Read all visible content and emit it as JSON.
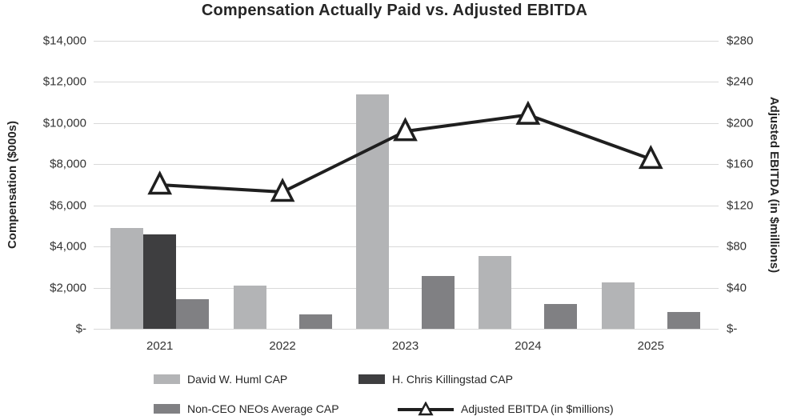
{
  "chart_data": {
    "type": "bar",
    "subtype": "grouped-bar-with-line-overlay",
    "title": "Compensation Actually Paid vs. Adjusted EBITDA",
    "categories": [
      "2021",
      "2022",
      "2023",
      "2024",
      "2025"
    ],
    "series": [
      {
        "name": "David W. Huml CAP",
        "type": "bar",
        "axis": "left",
        "color": "#b3b4b6",
        "values": [
          4900,
          2100,
          11400,
          3550,
          2250
        ]
      },
      {
        "name": "H. Chris Killingstad CAP",
        "type": "bar",
        "axis": "left",
        "color": "#3e3e40",
        "values": [
          4600,
          null,
          null,
          null,
          null
        ]
      },
      {
        "name": "Non-CEO NEOs Average CAP",
        "type": "bar",
        "axis": "left",
        "color": "#808083",
        "values": [
          1450,
          700,
          2550,
          1200,
          800
        ]
      },
      {
        "name": "Adjusted EBITDA (in $millions)",
        "type": "line",
        "axis": "right",
        "color": "#1f1f1f",
        "marker": "open-triangle",
        "values": [
          140,
          133,
          192,
          208,
          165
        ]
      }
    ],
    "left_axis": {
      "label": "Compensation ($000s)",
      "min": 0,
      "max": 14000,
      "step": 2000,
      "ticks": [
        "$14,000",
        "$12,000",
        "$10,000",
        "$8,000",
        "$6,000",
        "$4,000",
        "$2,000",
        "$-"
      ]
    },
    "right_axis": {
      "label": "Adjusted EBITDA (in $millions)",
      "min": 0,
      "max": 280,
      "step": 40,
      "ticks": [
        "$280",
        "$240",
        "$200",
        "$160",
        "$120",
        "$80",
        "$40",
        "$-"
      ]
    },
    "grid": true,
    "legend_position": "bottom",
    "colors": {
      "gridline": "#d9d9d9",
      "text": "#333333",
      "title_text": "#262626",
      "line": "#1f1f1f",
      "marker_fill": "#ffffff"
    }
  }
}
